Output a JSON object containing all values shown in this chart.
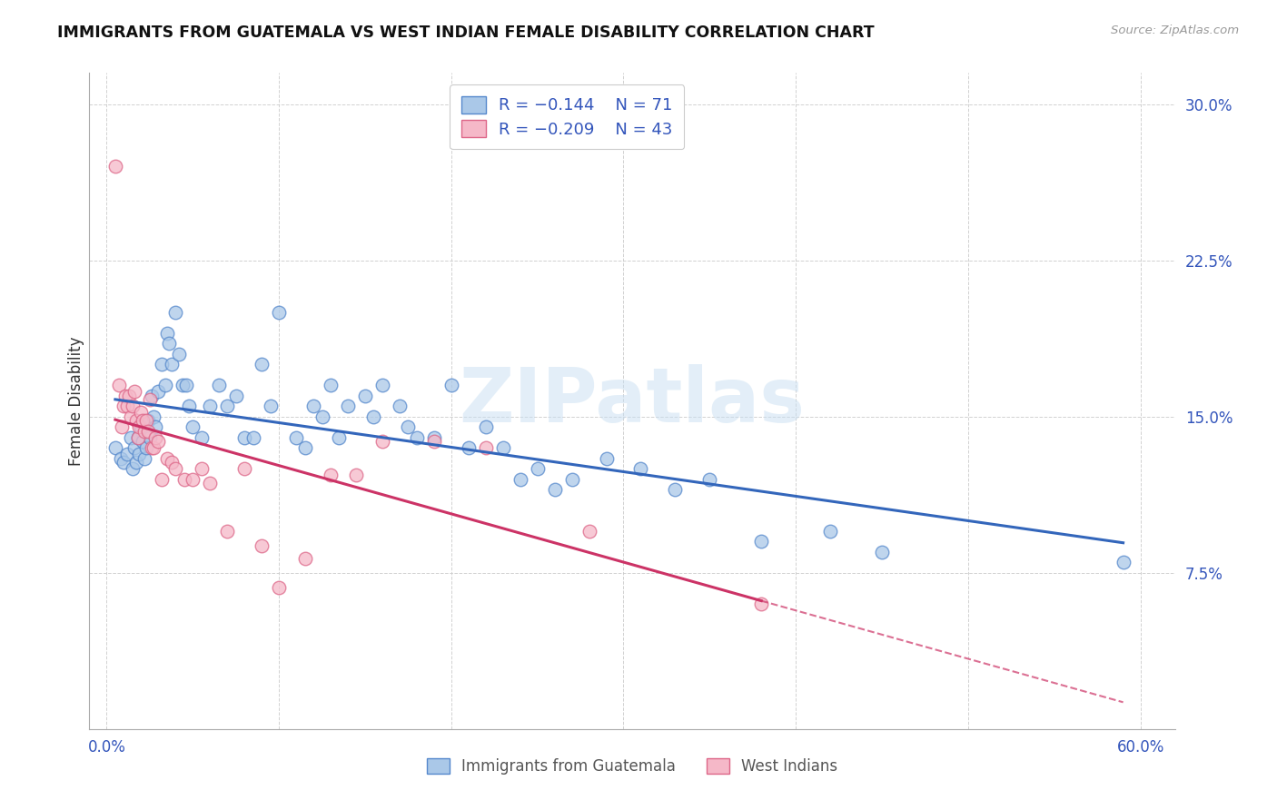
{
  "title": "IMMIGRANTS FROM GUATEMALA VS WEST INDIAN FEMALE DISABILITY CORRELATION CHART",
  "source": "Source: ZipAtlas.com",
  "ylabel": "Female Disability",
  "xlim": [
    0.0,
    0.6
  ],
  "ylim": [
    0.0,
    0.3
  ],
  "xticks": [
    0.0,
    0.1,
    0.2,
    0.3,
    0.4,
    0.5,
    0.6
  ],
  "xticklabels": [
    "0.0%",
    "",
    "",
    "",
    "",
    "",
    "60.0%"
  ],
  "yticks": [
    0.0,
    0.075,
    0.15,
    0.225,
    0.3
  ],
  "yticklabels": [
    "",
    "7.5%",
    "15.0%",
    "22.5%",
    "30.0%"
  ],
  "blue_color": "#aac8e8",
  "blue_edge_color": "#5588cc",
  "blue_line_color": "#3366bb",
  "pink_color": "#f5b8c8",
  "pink_edge_color": "#dd6688",
  "pink_line_color": "#cc3366",
  "legend_label1": "Immigrants from Guatemala",
  "legend_label2": "West Indians",
  "watermark": "ZIPatlas",
  "blue_scatter_x": [
    0.005,
    0.008,
    0.01,
    0.012,
    0.014,
    0.015,
    0.016,
    0.017,
    0.018,
    0.019,
    0.02,
    0.021,
    0.022,
    0.023,
    0.024,
    0.025,
    0.026,
    0.027,
    0.028,
    0.03,
    0.032,
    0.034,
    0.035,
    0.036,
    0.038,
    0.04,
    0.042,
    0.044,
    0.046,
    0.048,
    0.05,
    0.055,
    0.06,
    0.065,
    0.07,
    0.075,
    0.08,
    0.085,
    0.09,
    0.095,
    0.1,
    0.11,
    0.115,
    0.12,
    0.125,
    0.13,
    0.135,
    0.14,
    0.15,
    0.155,
    0.16,
    0.17,
    0.175,
    0.18,
    0.19,
    0.2,
    0.21,
    0.22,
    0.23,
    0.24,
    0.25,
    0.26,
    0.27,
    0.29,
    0.31,
    0.33,
    0.35,
    0.38,
    0.42,
    0.45,
    0.59
  ],
  "blue_scatter_y": [
    0.135,
    0.13,
    0.128,
    0.132,
    0.14,
    0.125,
    0.135,
    0.128,
    0.14,
    0.132,
    0.145,
    0.138,
    0.13,
    0.135,
    0.148,
    0.14,
    0.16,
    0.15,
    0.145,
    0.162,
    0.175,
    0.165,
    0.19,
    0.185,
    0.175,
    0.2,
    0.18,
    0.165,
    0.165,
    0.155,
    0.145,
    0.14,
    0.155,
    0.165,
    0.155,
    0.16,
    0.14,
    0.14,
    0.175,
    0.155,
    0.2,
    0.14,
    0.135,
    0.155,
    0.15,
    0.165,
    0.14,
    0.155,
    0.16,
    0.15,
    0.165,
    0.155,
    0.145,
    0.14,
    0.14,
    0.165,
    0.135,
    0.145,
    0.135,
    0.12,
    0.125,
    0.115,
    0.12,
    0.13,
    0.125,
    0.115,
    0.12,
    0.09,
    0.095,
    0.085,
    0.08
  ],
  "pink_scatter_x": [
    0.005,
    0.007,
    0.009,
    0.01,
    0.011,
    0.012,
    0.013,
    0.014,
    0.015,
    0.016,
    0.017,
    0.018,
    0.019,
    0.02,
    0.021,
    0.022,
    0.023,
    0.024,
    0.025,
    0.026,
    0.027,
    0.028,
    0.03,
    0.032,
    0.035,
    0.038,
    0.04,
    0.045,
    0.05,
    0.055,
    0.06,
    0.07,
    0.08,
    0.09,
    0.1,
    0.115,
    0.13,
    0.145,
    0.16,
    0.19,
    0.22,
    0.28,
    0.38
  ],
  "pink_scatter_y": [
    0.27,
    0.165,
    0.145,
    0.155,
    0.16,
    0.155,
    0.16,
    0.15,
    0.155,
    0.162,
    0.148,
    0.14,
    0.145,
    0.152,
    0.148,
    0.143,
    0.148,
    0.143,
    0.158,
    0.135,
    0.135,
    0.14,
    0.138,
    0.12,
    0.13,
    0.128,
    0.125,
    0.12,
    0.12,
    0.125,
    0.118,
    0.095,
    0.125,
    0.088,
    0.068,
    0.082,
    0.122,
    0.122,
    0.138,
    0.138,
    0.135,
    0.095,
    0.06
  ]
}
